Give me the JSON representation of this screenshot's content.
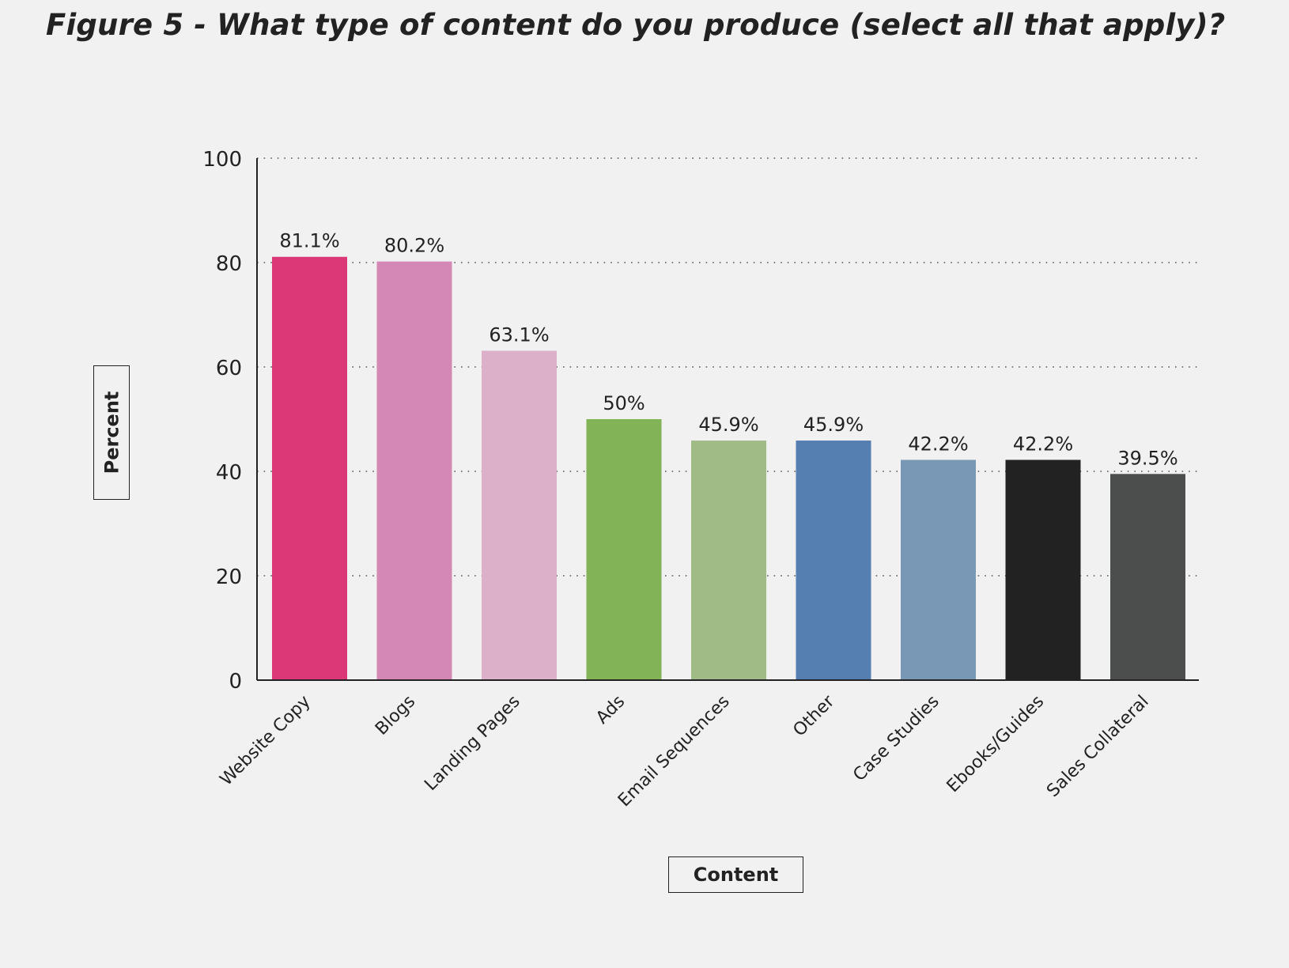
{
  "figure": {
    "title": "Figure 5 - What type of content do you produce (select all that apply)?"
  },
  "chart_data": {
    "type": "bar",
    "title": "Figure 5 - What type of content do you produce (select all that apply)?",
    "xlabel": "Content",
    "ylabel": "Percent",
    "ylim": [
      0,
      100
    ],
    "yticks": [
      0,
      20,
      40,
      60,
      80,
      100
    ],
    "grid": "horizontal dotted",
    "categories": [
      "Website Copy",
      "Blogs",
      "Landing Pages",
      "Ads",
      "Email Sequences",
      "Other",
      "Case Studies",
      "Ebooks/Guides",
      "Sales Collateral"
    ],
    "values": [
      81.1,
      80.2,
      63.1,
      50,
      45.9,
      45.9,
      42.2,
      42.2,
      39.5
    ],
    "value_labels": [
      "81.1%",
      "80.2%",
      "63.1%",
      "50%",
      "45.9%",
      "45.9%",
      "42.2%",
      "42.2%",
      "39.5%"
    ],
    "colors": [
      "#dc3777",
      "#d388b5",
      "#dcb0c9",
      "#82b356",
      "#a0bb86",
      "#567fb1",
      "#7998b5",
      "#222223",
      "#4c4e4d"
    ]
  }
}
